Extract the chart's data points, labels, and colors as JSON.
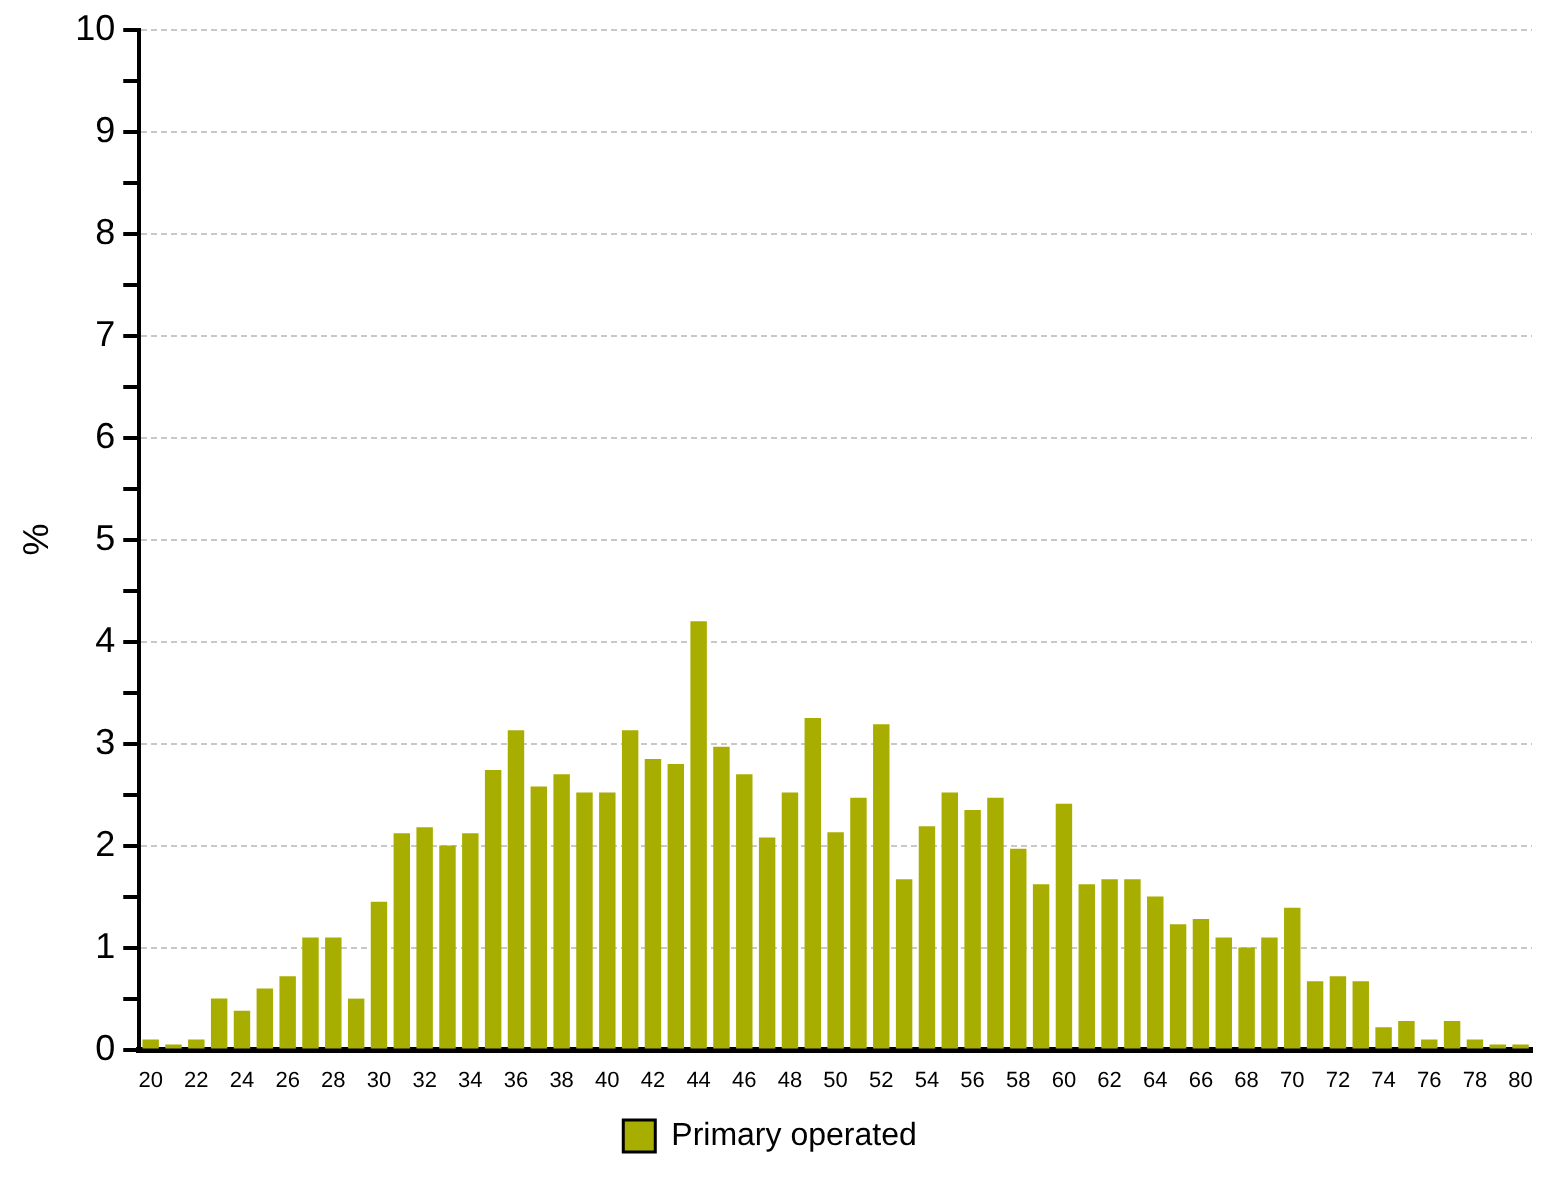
{
  "chart_data": {
    "type": "bar",
    "ylabel": "%",
    "categories": [
      "20",
      null,
      "22",
      null,
      "24",
      null,
      "26",
      null,
      "28",
      null,
      "30",
      null,
      "32",
      null,
      "34",
      null,
      "36",
      null,
      "38",
      null,
      "40",
      null,
      "42",
      null,
      "44",
      null,
      "46",
      null,
      "48",
      null,
      "50",
      null,
      "52",
      null,
      "54",
      null,
      "56",
      null,
      "58",
      null,
      "60",
      null,
      "62",
      null,
      "64",
      null,
      "66",
      null,
      "68",
      null,
      "70",
      null,
      "72",
      null,
      "74",
      null,
      "76",
      null,
      "78",
      null,
      "80"
    ],
    "series": [
      {
        "name": "Primary operated",
        "color": "#a8ae00",
        "values": [
          0.1,
          0.05,
          0.1,
          0.5,
          0.38,
          0.6,
          0.72,
          1.1,
          1.1,
          0.5,
          1.45,
          2.12,
          2.18,
          2.0,
          2.12,
          2.74,
          3.13,
          2.58,
          2.7,
          2.52,
          2.52,
          3.13,
          2.85,
          2.8,
          4.2,
          2.97,
          2.7,
          2.08,
          2.52,
          3.25,
          2.13,
          2.47,
          3.19,
          1.67,
          2.19,
          2.52,
          2.35,
          2.47,
          1.97,
          1.62,
          2.41,
          1.62,
          1.67,
          1.67,
          1.5,
          1.23,
          1.28,
          1.1,
          1.0,
          1.1,
          1.39,
          0.67,
          0.72,
          0.67,
          0.22,
          0.28,
          0.1,
          0.28,
          0.1,
          0.05,
          0.05
        ]
      }
    ],
    "ylim": [
      0,
      10
    ],
    "yticks": [
      0,
      {
        "value": 0.5,
        "label": null
      },
      1,
      {
        "value": 1.5,
        "label": null
      },
      2,
      {
        "value": 2.5,
        "label": null
      },
      3,
      {
        "value": 3.5,
        "label": null
      },
      4,
      {
        "value": 4.5,
        "label": null
      },
      5,
      {
        "value": 5.5,
        "label": null
      },
      6,
      {
        "value": 6.5,
        "label": null
      },
      7,
      {
        "value": 7.5,
        "label": null
      },
      8,
      {
        "value": 8.5,
        "label": null
      },
      9,
      {
        "value": 9.5,
        "label": null
      },
      10
    ],
    "grid": "y",
    "legend": "bottom"
  }
}
